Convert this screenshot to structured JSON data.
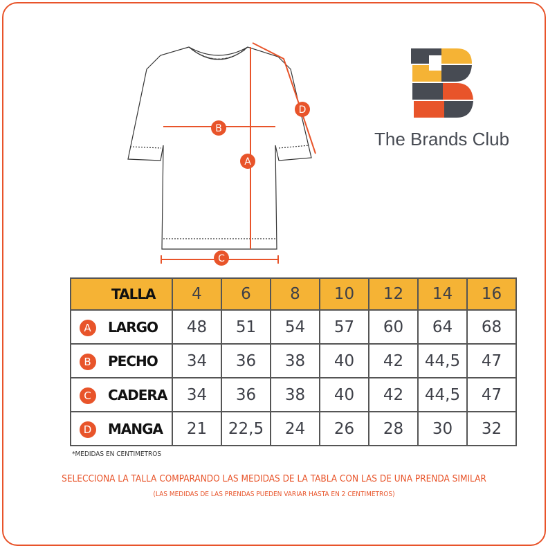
{
  "brand": {
    "name": "The Brands Club",
    "colors": {
      "orange": "#e8542a",
      "yellow": "#f5b335",
      "gray": "#474b53"
    }
  },
  "diagram": {
    "labels": [
      "A",
      "B",
      "C",
      "D"
    ]
  },
  "table": {
    "header": {
      "label": "TALLA",
      "sizes": [
        "4",
        "6",
        "8",
        "10",
        "12",
        "14",
        "16"
      ]
    },
    "rows": [
      {
        "badge": "A",
        "label": "LARGO",
        "values": [
          "48",
          "51",
          "54",
          "57",
          "60",
          "64",
          "68"
        ]
      },
      {
        "badge": "B",
        "label": "PECHO",
        "values": [
          "34",
          "36",
          "38",
          "40",
          "42",
          "44,5",
          "47"
        ]
      },
      {
        "badge": "C",
        "label": "CADERA",
        "values": [
          "34",
          "36",
          "38",
          "40",
          "42",
          "44,5",
          "47"
        ]
      },
      {
        "badge": "D",
        "label": "MANGA",
        "values": [
          "21",
          "22,5",
          "24",
          "26",
          "28",
          "30",
          "32"
        ]
      }
    ]
  },
  "note": "*MEDIDAS EN CENTIMETROS",
  "instruction": "SELECCIONA LA TALLA COMPARANDO LAS MEDIDAS DE LA TABLA CON LAS DE UNA PRENDA SIMILAR",
  "disclaimer": "(LAS MEDIDAS DE LAS PRENDAS PUEDEN VARIAR HASTA EN 2 CENTIMETROS)"
}
